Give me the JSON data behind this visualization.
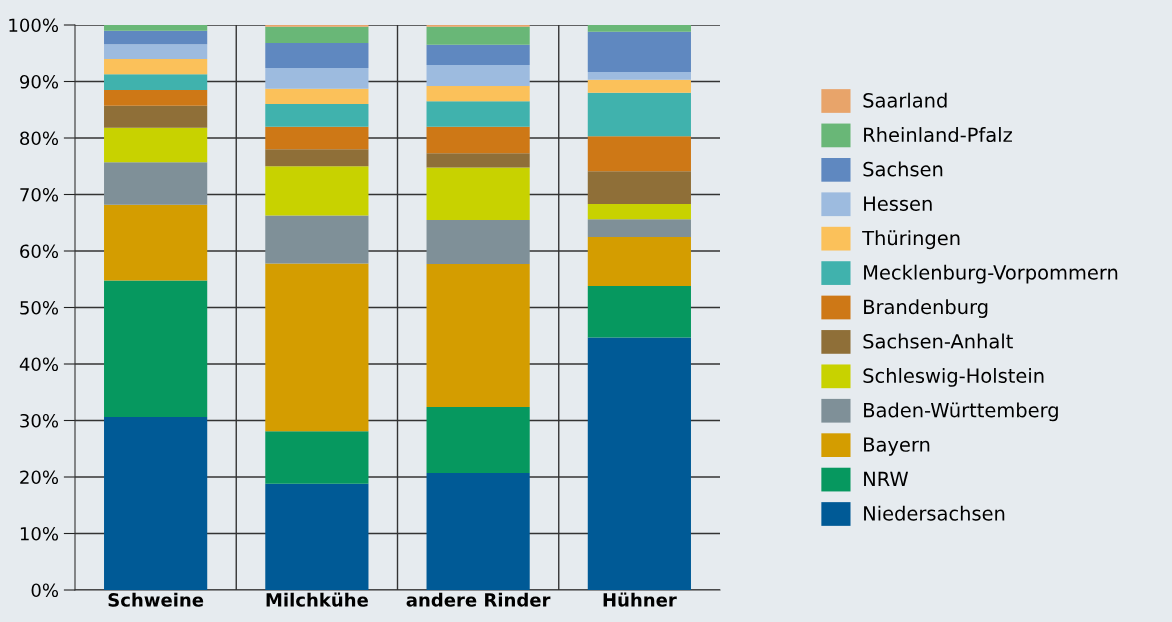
{
  "chart_data": {
    "type": "bar",
    "stacked": true,
    "categories": [
      "Schweine",
      "Milchkühe",
      "andere Rinder",
      "Hühner"
    ],
    "series": [
      {
        "name": "Niedersachsen",
        "color": "#005a96",
        "values": [
          30.6,
          18.8,
          20.7,
          44.7
        ]
      },
      {
        "name": "NRW",
        "color": "#06985f",
        "values": [
          24.2,
          9.3,
          11.7,
          9.1
        ]
      },
      {
        "name": "Bayern",
        "color": "#d49d00",
        "values": [
          13.4,
          29.7,
          25.3,
          8.7
        ]
      },
      {
        "name": "Baden-Württemberg",
        "color": "#7f9098",
        "values": [
          7.5,
          8.5,
          7.8,
          3.1
        ]
      },
      {
        "name": "Schleswig-Holstein",
        "color": "#c8d200",
        "values": [
          6.1,
          8.7,
          9.3,
          2.7
        ]
      },
      {
        "name": "Sachsen-Anhalt",
        "color": "#8f6f38",
        "values": [
          3.9,
          3.0,
          2.5,
          5.8
        ]
      },
      {
        "name": "Brandenburg",
        "color": "#ce7816",
        "values": [
          2.8,
          4.0,
          4.7,
          6.2
        ]
      },
      {
        "name": "Mecklenburg-Vorpommern",
        "color": "#40b2ad",
        "values": [
          2.8,
          4.0,
          4.5,
          7.7
        ]
      },
      {
        "name": "Thüringen",
        "color": "#fbc15a",
        "values": [
          2.7,
          2.7,
          2.7,
          2.3
        ]
      },
      {
        "name": "Hessen",
        "color": "#9dbbdf",
        "values": [
          2.6,
          3.7,
          3.7,
          1.4
        ]
      },
      {
        "name": "Sachsen",
        "color": "#5f88c0",
        "values": [
          2.4,
          4.4,
          3.6,
          7.1
        ]
      },
      {
        "name": "Rheinland-Pfalz",
        "color": "#69b777",
        "values": [
          1.0,
          2.9,
          3.2,
          1.2
        ]
      },
      {
        "name": "Saarland",
        "color": "#e8a46a",
        "values": [
          0,
          0.3,
          0.3,
          0
        ]
      }
    ],
    "ylim": [
      0,
      100
    ],
    "yticks": [
      {
        "value": 0,
        "label": "0%"
      },
      {
        "value": 10,
        "label": "10%"
      },
      {
        "value": 20,
        "label": "20%"
      },
      {
        "value": 30,
        "label": "30%"
      },
      {
        "value": 40,
        "label": "40%"
      },
      {
        "value": 50,
        "label": "50%"
      },
      {
        "value": 60,
        "label": "60%"
      },
      {
        "value": 70,
        "label": "70%"
      },
      {
        "value": 80,
        "label": "80%"
      },
      {
        "value": 90,
        "label": "90%"
      },
      {
        "value": 100,
        "label": "100%"
      }
    ],
    "grid": true,
    "legend": "right"
  }
}
